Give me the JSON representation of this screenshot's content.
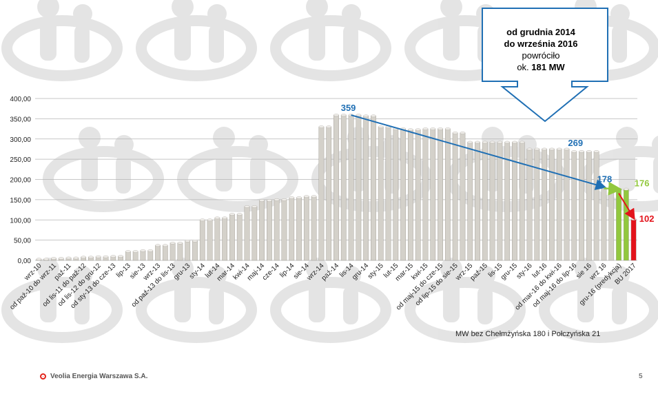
{
  "chart_data": {
    "type": "bar",
    "ylim": [
      0,
      400
    ],
    "yticks": [
      "0,00",
      "50,00",
      "100,00",
      "150,00",
      "200,00",
      "250,00",
      "300,00",
      "350,00",
      "400,00"
    ],
    "grid": true,
    "categories": [
      "wrz-10",
      "",
      "od paź-10 do wrz-11",
      "",
      "paź-11",
      "",
      "od lis-11 do paź-12",
      "",
      "od lis-12 do gru-12",
      "",
      "od sty-13 do cze-13",
      "",
      "lip-13",
      "",
      "sie-13",
      "",
      "wrz-13",
      "",
      "od paź-13 do lis-13",
      "",
      "gru-13",
      "",
      "sty-14",
      "",
      "lut-14",
      "",
      "mar-14",
      "",
      "kwi-14",
      "",
      "maj-14",
      "",
      "cze-14",
      "",
      "lip-14",
      "",
      "sie-14",
      "",
      "wrz-14",
      "",
      "paź-14",
      "",
      "lis-14",
      "",
      "gru-14",
      "",
      "sty-15",
      "",
      "lut-15",
      "",
      "mar-15",
      "",
      "kwi-15",
      "",
      "od maj-15 do cze-15",
      "",
      "od lip-15 do sie-15",
      "",
      "wrz-15",
      "",
      "paź-15",
      "",
      "lis-15",
      "",
      "gru-15",
      "",
      "sty-16",
      "",
      "lut-16",
      "",
      "od mar-16 do kwi-16",
      "",
      "od maj-16 do lip-16",
      "",
      "sie 16",
      "",
      "wrz 16",
      "",
      "gru-16 (predykcja)",
      "",
      "BU 2017"
    ],
    "values": [
      3,
      3,
      5,
      5,
      6,
      6,
      8,
      8,
      9,
      9,
      10,
      10,
      22,
      22,
      24,
      24,
      37,
      37,
      43,
      43,
      48,
      48,
      100,
      100,
      105,
      105,
      114,
      114,
      133,
      133,
      148,
      148,
      150,
      150,
      155,
      155,
      158,
      158,
      330,
      330,
      359,
      359,
      359,
      359,
      357,
      357,
      330,
      330,
      325,
      325,
      323,
      323,
      325,
      325,
      325,
      325,
      315,
      315,
      292,
      292,
      292,
      292,
      292,
      292,
      292,
      292,
      275,
      275,
      275,
      275,
      275,
      275,
      269,
      269,
      269,
      269,
      178,
      178,
      176,
      176,
      102
    ],
    "bar_colors": {
      "default": "#d4d1ca",
      "prediction": "#92c83e",
      "budget": "#e3131b"
    },
    "annotations": {
      "peak": "359",
      "sep16": "269",
      "wrz16": "178",
      "prediction": "176",
      "budget": "102"
    },
    "annotation_colors": {
      "blue": "#1f6fb4",
      "green": "#92c83e",
      "red": "#e3131b"
    },
    "callout": {
      "line1": "od grudnia 2014",
      "line2": "do września 2016",
      "line3": "powróciło",
      "line4_prefix": "ok. ",
      "line4_bold": "181 MW"
    },
    "footnote": "MW bez Chełmżyńska 180 i Połczyńska 21"
  },
  "footer": {
    "company": "Veolia Energia Warszawa S.A.",
    "page": "5"
  }
}
